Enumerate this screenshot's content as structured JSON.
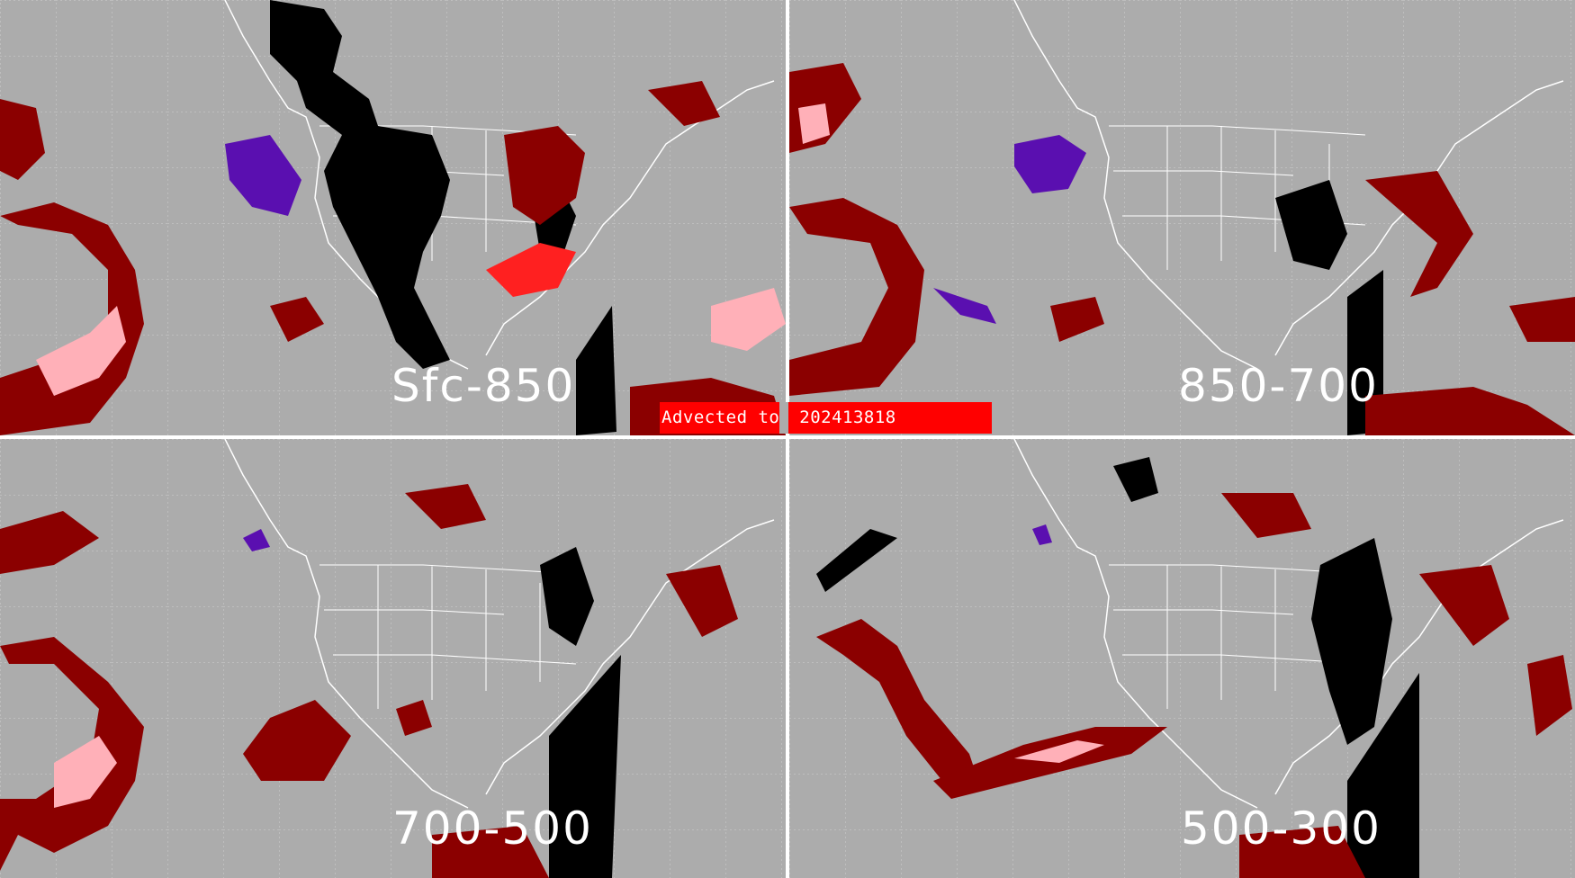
{
  "banner": {
    "label": "Advected to",
    "timestamp": "202413818",
    "color": "#ff0000"
  },
  "panels": [
    {
      "id": "sfc-850",
      "label": "Sfc-850"
    },
    {
      "id": "850-700",
      "label": "850-700"
    },
    {
      "id": "700-500",
      "label": "700-500"
    },
    {
      "id": "500-300",
      "label": "500-300"
    }
  ],
  "colors": {
    "background": "#acacac",
    "map_lines": "#ffffff",
    "black_region": "#000000",
    "dark_red_region": "#8b0000",
    "pink_region": "#ffb0b8",
    "red_region": "#ff2020",
    "purple_region": "#5a0fb0"
  }
}
